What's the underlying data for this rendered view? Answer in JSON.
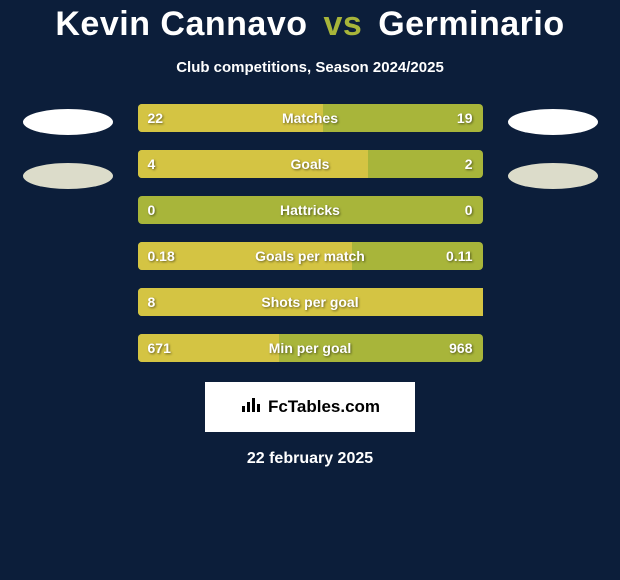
{
  "title": {
    "player1": "Kevin Cannavo",
    "vs": "vs",
    "player2": "Germinario"
  },
  "subtitle": "Club competitions, Season 2024/2025",
  "bars": [
    {
      "label": "Matches",
      "left_val": "22",
      "right_val": "19",
      "left_pct": 53.7,
      "bar_left_color": "#d4c443",
      "bar_right_color": "#a8b53a"
    },
    {
      "label": "Goals",
      "left_val": "4",
      "right_val": "2",
      "left_pct": 66.7,
      "bar_left_color": "#d4c443",
      "bar_right_color": "#a8b53a"
    },
    {
      "label": "Hattricks",
      "left_val": "0",
      "right_val": "0",
      "left_pct": 0,
      "bar_left_color": "#d4c443",
      "bar_right_color": "#a8b53a"
    },
    {
      "label": "Goals per match",
      "left_val": "0.18",
      "right_val": "0.11",
      "left_pct": 62.1,
      "bar_left_color": "#d4c443",
      "bar_right_color": "#a8b53a"
    },
    {
      "label": "Shots per goal",
      "left_val": "8",
      "right_val": "",
      "left_pct": 100,
      "bar_left_color": "#d4c443",
      "bar_right_color": "#a8b53a"
    },
    {
      "label": "Min per goal",
      "left_val": "671",
      "right_val": "968",
      "left_pct": 40.9,
      "bar_left_color": "#d4c443",
      "bar_right_color": "#a8b53a"
    }
  ],
  "logo": {
    "icon": "📊",
    "text": "FcTables.com"
  },
  "date": "22 february 2025",
  "colors": {
    "background": "#0c1e3a",
    "accent_vs": "#a8b53a",
    "text": "#ffffff",
    "ellipse_primary": "#ffffff",
    "ellipse_secondary": "#dcdcca"
  }
}
